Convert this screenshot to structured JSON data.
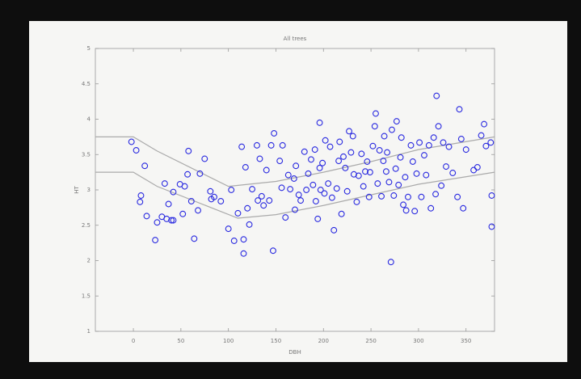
{
  "chart_data": {
    "type": "scatter",
    "title": "All trees",
    "xlabel": "DBH",
    "ylabel": "HT",
    "xlim": [
      -40,
      380
    ],
    "ylim": [
      1,
      5
    ],
    "xticks": [
      0,
      50,
      100,
      150,
      200,
      250,
      300,
      350
    ],
    "yticks": [
      1,
      1.5,
      2,
      2.5,
      3,
      3.5,
      4,
      4.5,
      5
    ],
    "grid": false,
    "points": {
      "color": "#2a2ae0",
      "x": [
        -2,
        3,
        12,
        8,
        7,
        14,
        23,
        25,
        30,
        35,
        40,
        42,
        37,
        33,
        42,
        49,
        52,
        58,
        57,
        54,
        64,
        61,
        68,
        70,
        75,
        81,
        85,
        82,
        92,
        100,
        103,
        106,
        110,
        114,
        116,
        116,
        118,
        120,
        122,
        125,
        130,
        131,
        133,
        135,
        137,
        140,
        143,
        145,
        147,
        148,
        154,
        156,
        157,
        160,
        163,
        165,
        169,
        170,
        171,
        174,
        176,
        180,
        182,
        184,
        187,
        189,
        191,
        192,
        194,
        196,
        196,
        197,
        199,
        201,
        202,
        205,
        207,
        209,
        211,
        214,
        216,
        217,
        219,
        221,
        223,
        225,
        227,
        229,
        231,
        232,
        235,
        237,
        240,
        242,
        244,
        246,
        248,
        249,
        252,
        254,
        255,
        257,
        259,
        261,
        263,
        264,
        266,
        267,
        269,
        271,
        272,
        274,
        276,
        277,
        279,
        281,
        282,
        284,
        286,
        287,
        289,
        292,
        294,
        296,
        298,
        301,
        303,
        306,
        308,
        311,
        313,
        316,
        318,
        319,
        321,
        324,
        326,
        329,
        332,
        336,
        341,
        343,
        345,
        347,
        350,
        358,
        362,
        366,
        369,
        371,
        376,
        377,
        377
      ],
      "y": [
        3.68,
        3.56,
        3.34,
        2.92,
        2.83,
        2.63,
        2.29,
        2.54,
        2.62,
        2.59,
        2.57,
        2.57,
        2.8,
        3.09,
        2.97,
        3.08,
        2.66,
        3.55,
        3.22,
        3.05,
        2.31,
        2.84,
        2.71,
        3.23,
        3.44,
        2.98,
        2.9,
        2.87,
        2.84,
        2.45,
        3.0,
        2.28,
        2.67,
        3.61,
        2.3,
        2.1,
        3.32,
        2.74,
        2.51,
        3.01,
        3.63,
        2.85,
        3.44,
        2.91,
        2.78,
        3.28,
        2.85,
        3.63,
        2.14,
        3.8,
        3.41,
        3.03,
        3.63,
        2.61,
        3.21,
        3.01,
        3.16,
        2.72,
        3.34,
        2.93,
        2.85,
        3.54,
        3.0,
        3.23,
        3.43,
        3.07,
        3.57,
        2.84,
        2.59,
        3.31,
        3.95,
        3.0,
        3.38,
        2.95,
        3.7,
        3.09,
        3.61,
        2.89,
        2.43,
        3.02,
        3.41,
        3.68,
        2.66,
        3.47,
        3.31,
        2.98,
        3.83,
        3.53,
        3.76,
        3.22,
        2.83,
        3.2,
        3.51,
        3.05,
        3.26,
        3.4,
        2.9,
        3.25,
        3.62,
        3.9,
        4.08,
        3.09,
        3.56,
        2.91,
        3.41,
        3.76,
        3.26,
        3.53,
        3.11,
        1.98,
        3.85,
        2.92,
        3.3,
        3.97,
        3.07,
        3.46,
        3.74,
        2.79,
        3.18,
        2.71,
        2.9,
        3.63,
        3.4,
        2.7,
        3.23,
        3.67,
        2.9,
        3.49,
        3.21,
        3.63,
        2.74,
        3.74,
        2.94,
        4.33,
        3.9,
        3.06,
        3.67,
        3.33,
        3.61,
        3.24,
        2.9,
        4.14,
        3.72,
        2.74,
        3.57,
        3.28,
        3.32,
        3.77,
        3.93,
        3.62,
        3.67,
        2.92,
        2.48
      ]
    },
    "curves": [
      {
        "color": "#aaaaaa",
        "x": [
          -40,
          0,
          25,
          100,
          150,
          200,
          250,
          300,
          380
        ],
        "y": [
          3.75,
          3.75,
          3.55,
          3.05,
          3.12,
          3.25,
          3.4,
          3.57,
          3.75
        ]
      },
      {
        "color": "#aaaaaa",
        "x": [
          -40,
          0,
          25,
          110,
          150,
          200,
          250,
          300,
          380
        ],
        "y": [
          3.25,
          3.25,
          3.05,
          2.6,
          2.65,
          2.78,
          2.93,
          3.08,
          3.25
        ]
      }
    ]
  }
}
